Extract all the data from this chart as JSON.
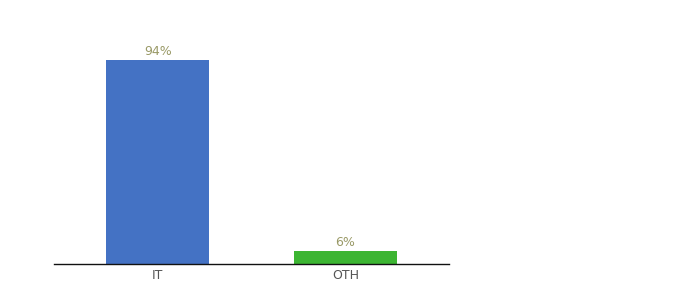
{
  "categories": [
    "IT",
    "OTH"
  ],
  "values": [
    94,
    6
  ],
  "bar_colors": [
    "#4472c4",
    "#3cb532"
  ],
  "label_texts": [
    "94%",
    "6%"
  ],
  "background_color": "#ffffff",
  "ylim": [
    0,
    108
  ],
  "bar_width": 0.55,
  "label_fontsize": 9,
  "tick_fontsize": 9,
  "label_color": "#999966",
  "tick_color": "#555555"
}
